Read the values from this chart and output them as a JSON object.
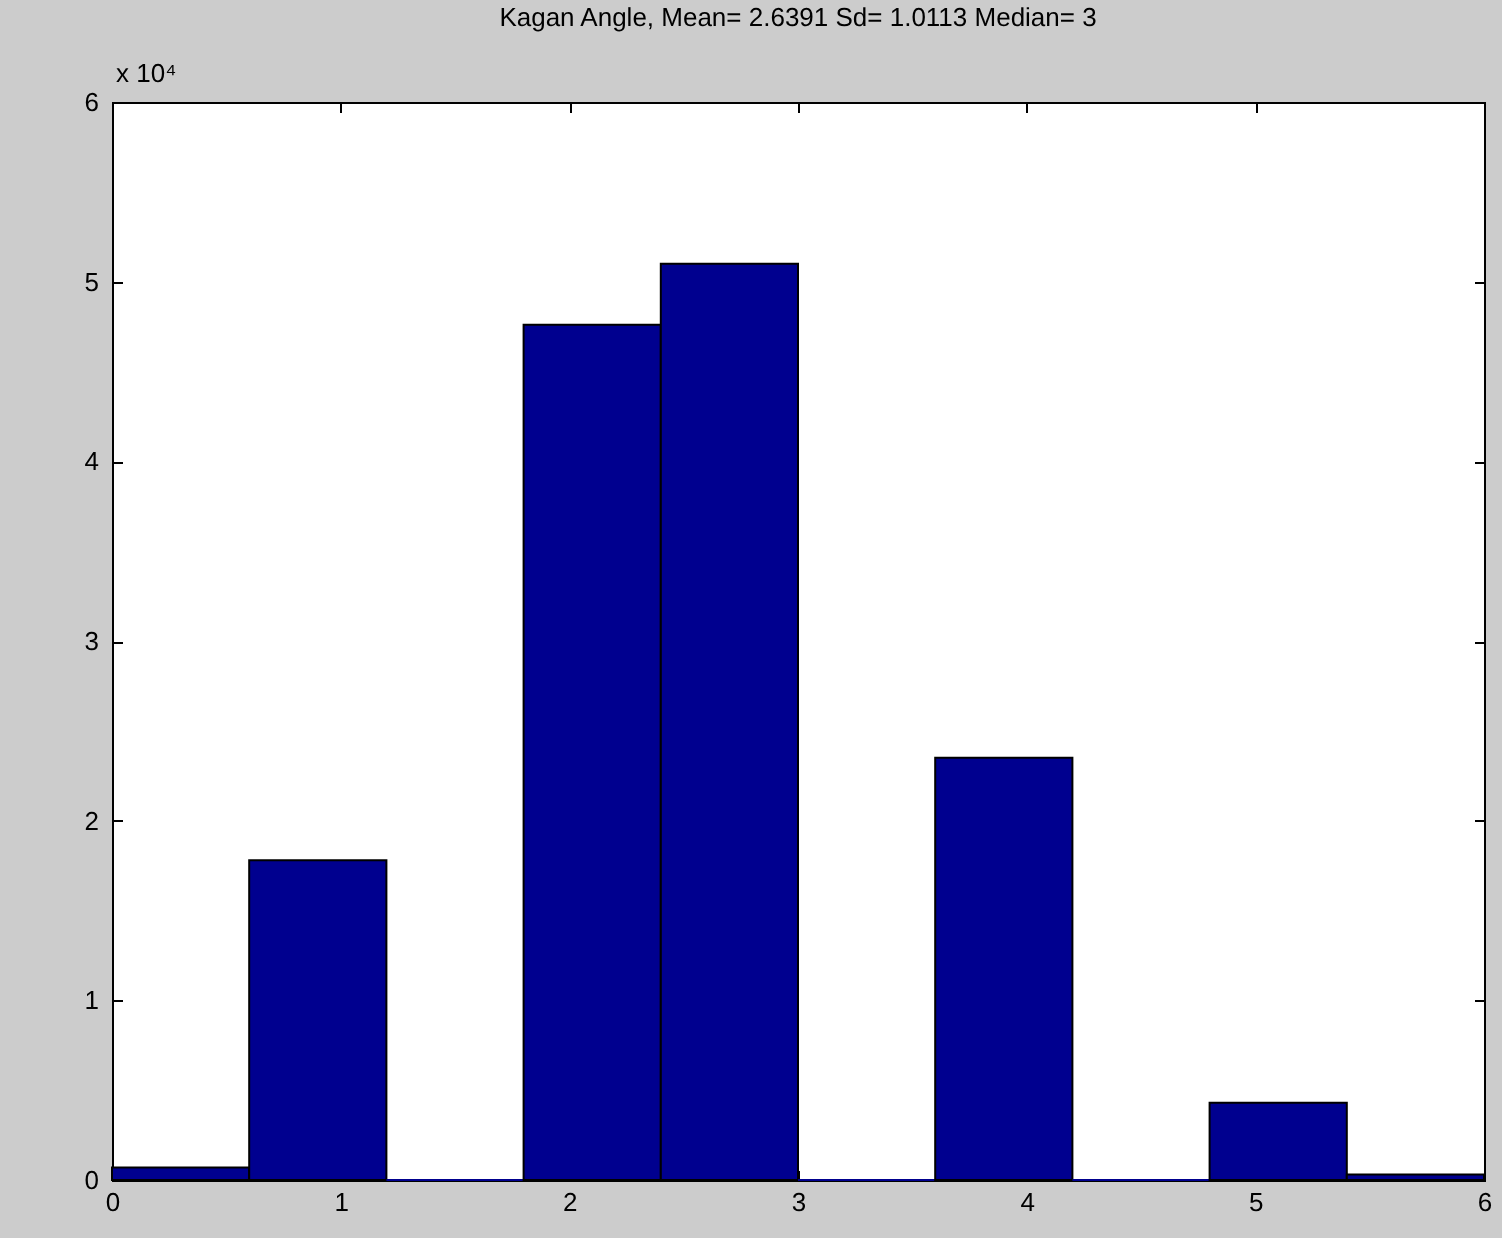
{
  "chart_data": {
    "type": "histogram",
    "title": "Kagan Angle, Mean= 2.6391  Sd=  1.0113  Median= 3",
    "annotations": [
      "x 10⁴"
    ],
    "bins": [
      0,
      0.6,
      1.2,
      1.8,
      2.4,
      3.0,
      3.6,
      4.2,
      4.8,
      5.4,
      6.0
    ],
    "values": [
      0.07,
      1.78,
      0,
      4.76,
      5.1,
      0,
      2.35,
      0,
      0.43,
      0.03
    ],
    "color": "#00008f",
    "xlim": [
      0,
      6
    ],
    "ylim": [
      0,
      6
    ],
    "xticks": [
      0,
      1,
      2,
      3,
      4,
      5,
      6
    ],
    "yticks": [
      0,
      1,
      2,
      3,
      4,
      5,
      6
    ]
  }
}
